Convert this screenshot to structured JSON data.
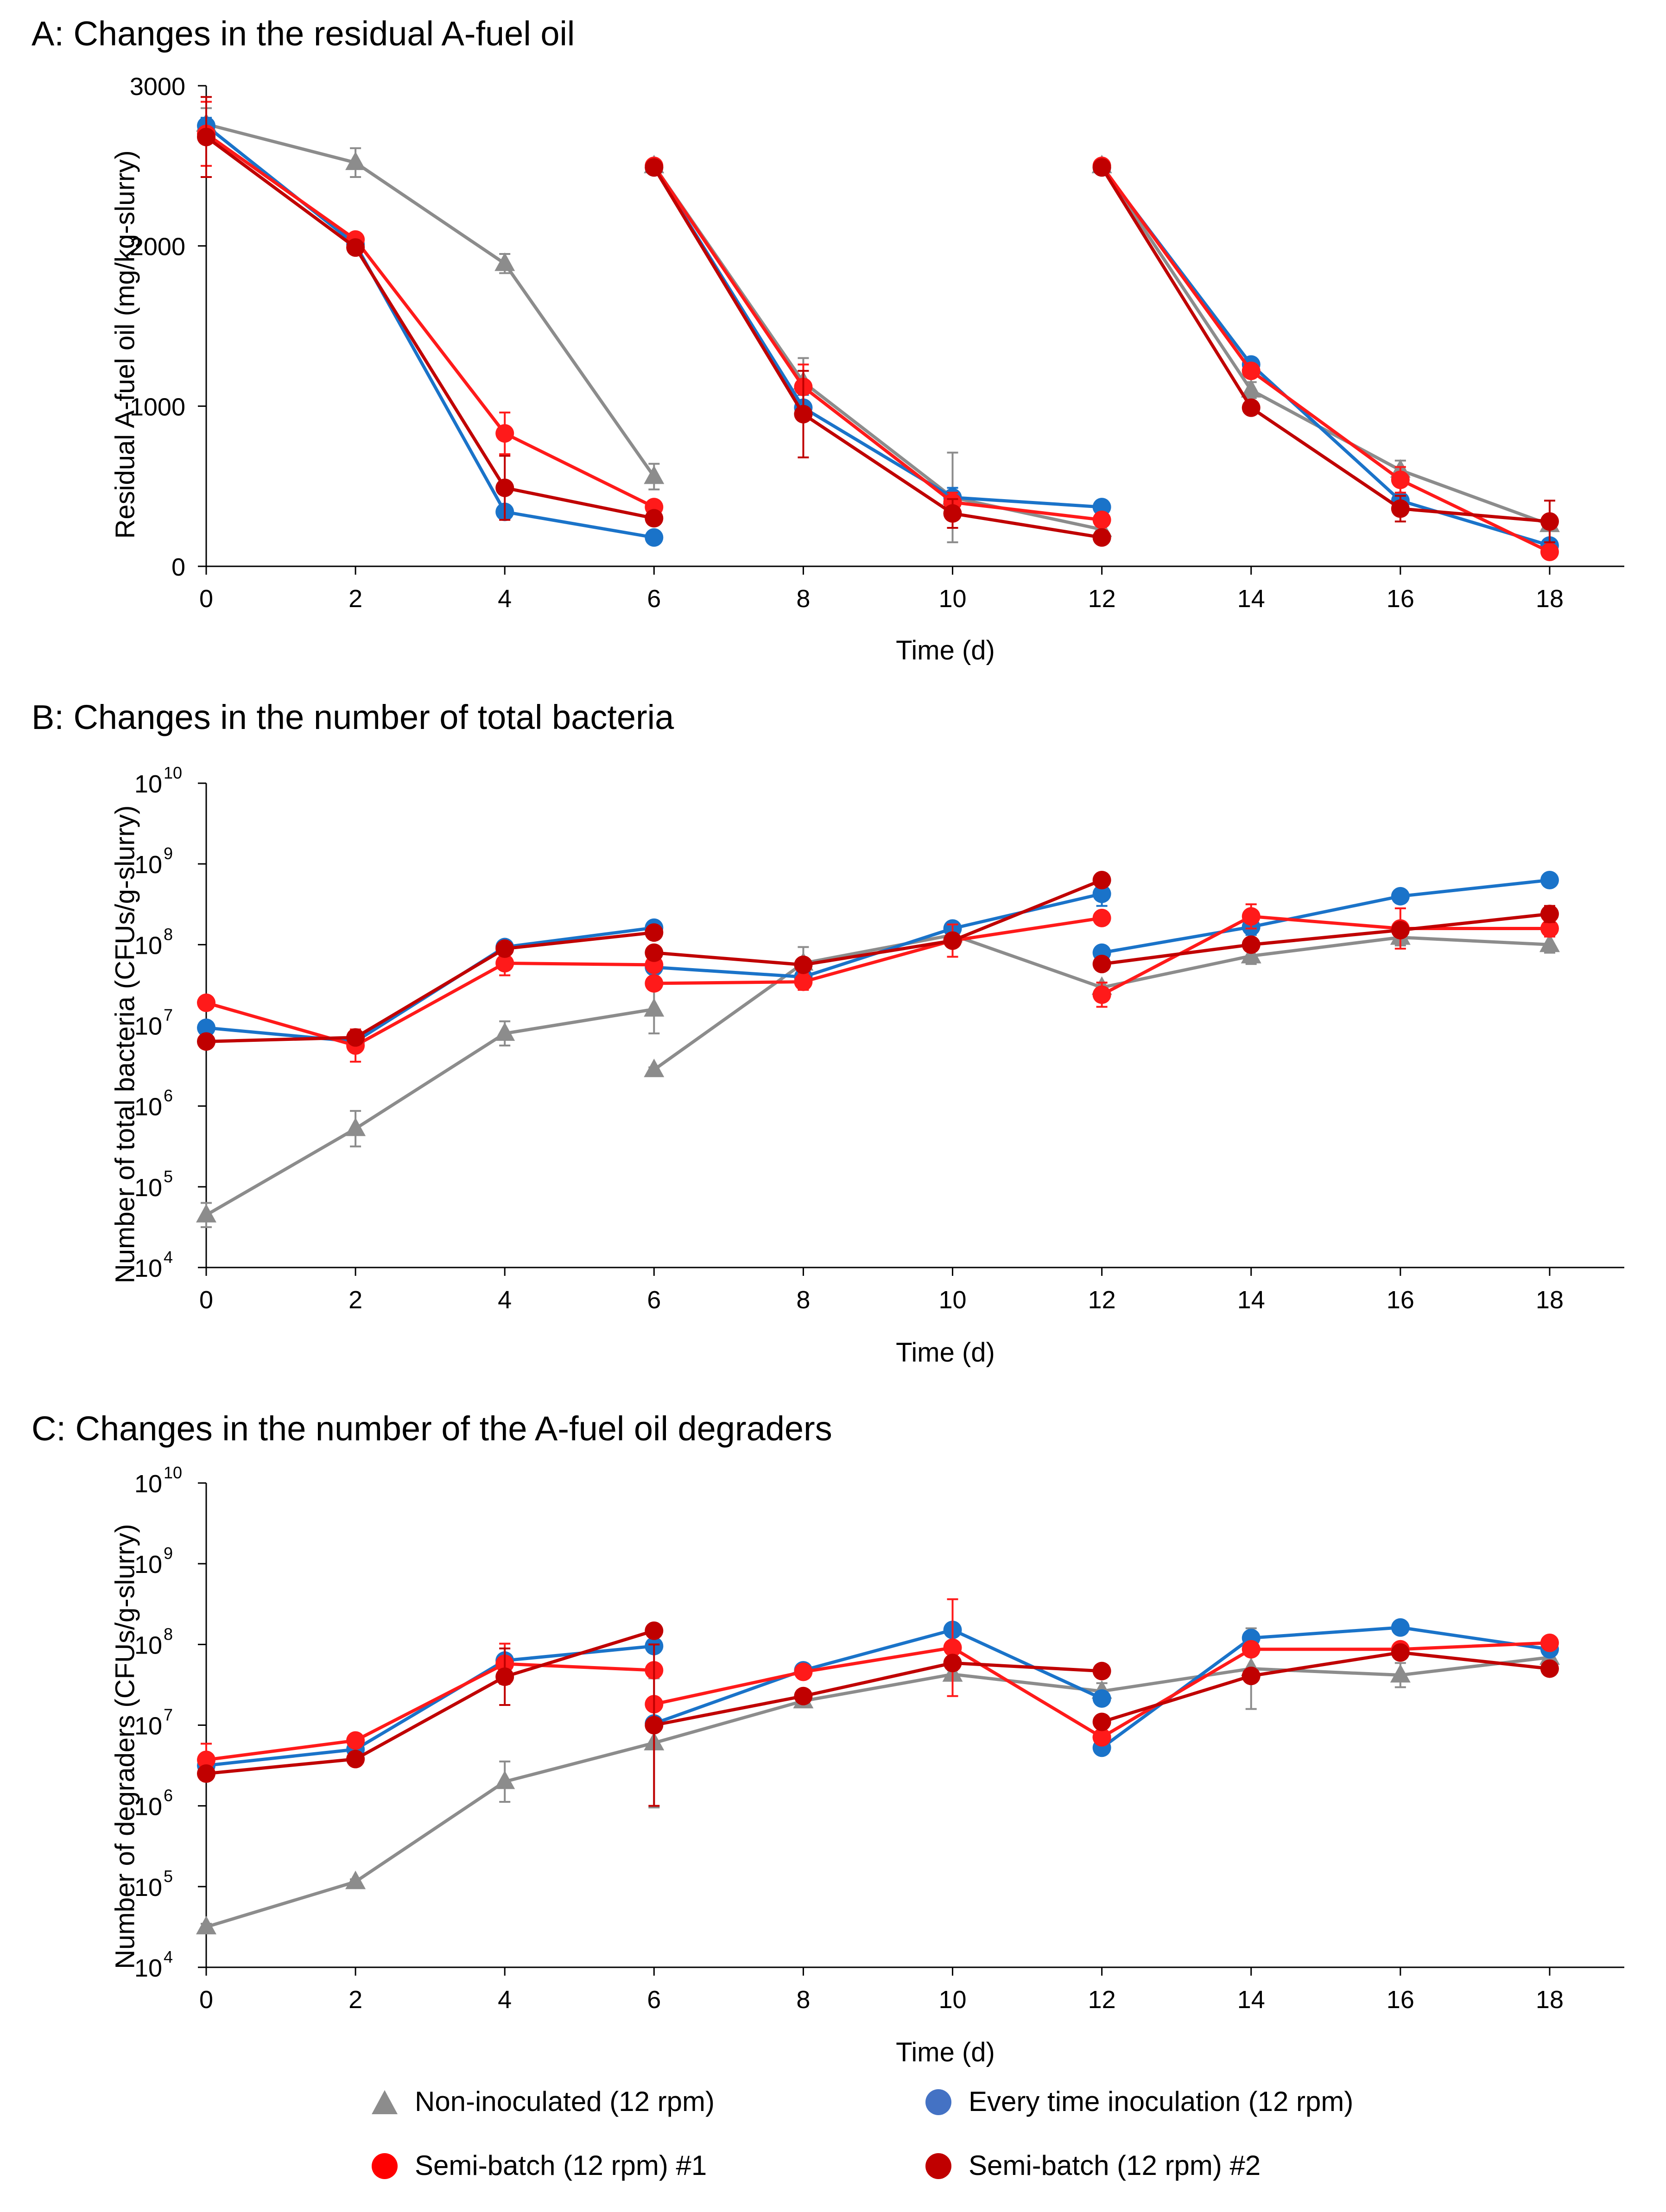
{
  "legend": [
    {
      "name": "Non-inoculated (12 rpm)",
      "color": "#808080",
      "marker": "triangle"
    },
    {
      "name": "Every time inoculation (12 rpm)",
      "color": "#4472C4",
      "marker": "circle"
    },
    {
      "name": "Semi-batch (12 rpm) #1",
      "color": "#FF0000",
      "marker": "circle"
    },
    {
      "name": "Semi-batch (12 rpm) #2",
      "color": "#C00000",
      "marker": "circle"
    }
  ],
  "chart_data": [
    {
      "type": "line",
      "title": "A: Changes in the residual A-fuel oil",
      "xlabel": "Time (d)",
      "ylabel": "Residual A-fuel oil (mg/kg-slurry)",
      "xlim": [
        0,
        19
      ],
      "ylim": [
        0,
        3000
      ],
      "yscale": "linear",
      "xticks": [
        0,
        2,
        4,
        6,
        8,
        10,
        12,
        14,
        16,
        18
      ],
      "yticks": [
        0,
        1000,
        2000,
        3000
      ],
      "ytick_labels": [
        "0",
        "1000",
        "2000",
        "3000"
      ],
      "series": [
        {
          "name": "Non-inoculated (12 rpm)",
          "color": "#8C8C8C",
          "marker": "triangle",
          "segments": [
            [
              [
                0,
                2760,
                100
              ],
              [
                2,
                2520,
                90
              ],
              [
                4,
                1890,
                60
              ],
              [
                6,
                560,
                80
              ]
            ],
            [
              [
                6,
                2500,
                40
              ],
              [
                8,
                1150,
                150
              ],
              [
                10,
                430,
                280
              ],
              [
                12,
                230,
                60
              ]
            ],
            [
              [
                12,
                2500,
                30
              ],
              [
                14,
                1100,
                50
              ],
              [
                16,
                600,
                60
              ],
              [
                18,
                260,
                40
              ]
            ]
          ]
        },
        {
          "name": "Every time inoculation (12 rpm)",
          "color": "#1A73C9",
          "marker": "circle",
          "segments": [
            [
              [
                0,
                2750,
                50
              ],
              [
                2,
                2010,
                30
              ],
              [
                4,
                340,
                40
              ],
              [
                6,
                180,
                20
              ]
            ],
            [
              [
                6,
                2490,
                30
              ],
              [
                8,
                990,
                80
              ],
              [
                10,
                430,
                60
              ],
              [
                12,
                370,
                20
              ]
            ],
            [
              [
                12,
                2490,
                30
              ],
              [
                14,
                1260,
                30
              ],
              [
                16,
                410,
                40
              ],
              [
                18,
                130,
                30
              ]
            ]
          ]
        },
        {
          "name": "Semi-batch (12 rpm) #1",
          "color": "#FF1A1A",
          "marker": "circle",
          "segments": [
            [
              [
                0,
                2700,
                200
              ],
              [
                2,
                2040,
                30
              ],
              [
                4,
                830,
                130
              ],
              [
                6,
                370,
                30
              ]
            ],
            [
              [
                6,
                2500,
                20
              ],
              [
                8,
                1120,
                140
              ],
              [
                10,
                400,
                60
              ],
              [
                12,
                290,
                20
              ]
            ],
            [
              [
                12,
                2500,
                20
              ],
              [
                14,
                1220,
                40
              ],
              [
                16,
                540,
                80
              ],
              [
                18,
                90,
                20
              ]
            ]
          ]
        },
        {
          "name": "Semi-batch (12 rpm) #2",
          "color": "#C00000",
          "marker": "circle",
          "segments": [
            [
              [
                0,
                2680,
                250
              ],
              [
                2,
                1990,
                30
              ],
              [
                4,
                490,
                200
              ],
              [
                6,
                300,
                20
              ]
            ],
            [
              [
                6,
                2490,
                20
              ],
              [
                8,
                950,
                270
              ],
              [
                10,
                330,
                90
              ],
              [
                12,
                180,
                20
              ]
            ],
            [
              [
                12,
                2490,
                20
              ],
              [
                14,
                990,
                30
              ],
              [
                16,
                360,
                80
              ],
              [
                18,
                280,
                130
              ]
            ]
          ]
        }
      ]
    },
    {
      "type": "line",
      "title": "B: Changes in the number of total bacteria",
      "xlabel": "Time (d)",
      "ylabel": "Number of total bacteria (CFUs/g-slurry)",
      "xlim": [
        0,
        19
      ],
      "ylim": [
        4,
        10
      ],
      "yscale": "log10",
      "xticks": [
        0,
        2,
        4,
        6,
        8,
        10,
        12,
        14,
        16,
        18
      ],
      "yticks": [
        4,
        5,
        6,
        7,
        8,
        9,
        10
      ],
      "ytick_labels": [
        "10",
        "10",
        "10",
        "10",
        "10",
        "10",
        "10"
      ],
      "ytick_exponents": [
        "4",
        "5",
        "6",
        "7",
        "8",
        "9",
        "10"
      ],
      "series": [
        {
          "name": "Non-inoculated (12 rpm)",
          "color": "#8C8C8C",
          "marker": "triangle",
          "segments": [
            [
              [
                0,
                4.65,
                0.15
              ],
              [
                2,
                5.72,
                0.22
              ],
              [
                4,
                6.9,
                0.15
              ],
              [
                6,
                7.2,
                0.3
              ]
            ],
            [
              [
                6,
                6.45,
                0.03
              ],
              [
                8,
                7.77,
                0.2
              ],
              [
                10,
                8.12,
                0.06
              ],
              [
                12,
                7.47,
                0.06
              ],
              [
                14,
                7.86,
                0.1
              ],
              [
                16,
                8.09,
                0.1
              ],
              [
                18,
                8.0,
                0.1
              ]
            ]
          ]
        },
        {
          "name": "Every time inoculation (12 rpm)",
          "color": "#1A73C9",
          "marker": "circle",
          "segments": [
            [
              [
                0,
                6.97,
                0.03
              ],
              [
                2,
                6.8,
                0.06
              ],
              [
                4,
                7.97,
                0.03
              ],
              [
                6,
                8.21,
                0.03
              ]
            ],
            [
              [
                6,
                7.72,
                0.06
              ],
              [
                8,
                7.6,
                0.1
              ],
              [
                10,
                8.2,
                0.06
              ],
              [
                12,
                8.63,
                0.15
              ]
            ],
            [
              [
                12,
                7.9,
                0.08
              ],
              [
                14,
                8.22,
                0.1
              ],
              [
                16,
                8.6,
                0.05
              ],
              [
                18,
                8.8,
                0.04
              ]
            ]
          ]
        },
        {
          "name": "Semi-batch (12 rpm) #1",
          "color": "#FF1A1A",
          "marker": "circle",
          "segments": [
            [
              [
                0,
                7.28,
                0.03
              ],
              [
                2,
                6.75,
                0.2
              ],
              [
                4,
                7.77,
                0.15
              ],
              [
                6,
                7.75,
                0.03
              ]
            ],
            [
              [
                6,
                7.52,
                0.03
              ],
              [
                8,
                7.54,
                0.1
              ],
              [
                10,
                8.05,
                0.2
              ],
              [
                12,
                8.33,
                0.03
              ]
            ],
            [
              [
                12,
                7.38,
                0.15
              ],
              [
                14,
                8.35,
                0.15
              ],
              [
                16,
                8.2,
                0.25
              ],
              [
                18,
                8.2,
                0.1
              ]
            ]
          ]
        },
        {
          "name": "Semi-batch (12 rpm) #2",
          "color": "#C00000",
          "marker": "circle",
          "segments": [
            [
              [
                0,
                6.8,
                0.03
              ],
              [
                2,
                6.85,
                0.06
              ],
              [
                4,
                7.95,
                0.03
              ],
              [
                6,
                8.15,
                0.03
              ]
            ],
            [
              [
                6,
                7.9,
                0.03
              ],
              [
                8,
                7.75,
                0.06
              ],
              [
                10,
                8.05,
                0.06
              ],
              [
                12,
                8.8,
                0.04
              ]
            ],
            [
              [
                12,
                7.76,
                0.06
              ],
              [
                14,
                8.0,
                0.06
              ],
              [
                16,
                8.18,
                0.08
              ],
              [
                18,
                8.38,
                0.1
              ]
            ]
          ]
        }
      ]
    },
    {
      "type": "line",
      "title": "C: Changes in the number of the A-fuel oil degraders",
      "xlabel": "Time (d)",
      "ylabel": "Number of degraders (CFUs/g-slurry)",
      "xlim": [
        0,
        19
      ],
      "ylim": [
        4,
        10
      ],
      "yscale": "log10",
      "xticks": [
        0,
        2,
        4,
        6,
        8,
        10,
        12,
        14,
        16,
        18
      ],
      "yticks": [
        4,
        5,
        6,
        7,
        8,
        9,
        10
      ],
      "ytick_labels": [
        "10",
        "10",
        "10",
        "10",
        "10",
        "10",
        "10"
      ],
      "ytick_exponents": [
        "4",
        "5",
        "6",
        "7",
        "8",
        "9",
        "10"
      ],
      "series": [
        {
          "name": "Non-inoculated (12 rpm)",
          "color": "#8C8C8C",
          "marker": "triangle",
          "segments": [
            [
              [
                0,
                4.5,
                0.04
              ],
              [
                2,
                5.06,
                0.03
              ],
              [
                4,
                6.3,
                0.25
              ],
              [
                6,
                6.78,
                0.8
              ],
              [
                8,
                7.3,
                0.05
              ],
              [
                10,
                7.63,
                0.05
              ],
              [
                12,
                7.42,
                0.1
              ],
              [
                14,
                7.7,
                0.5
              ],
              [
                16,
                7.62,
                0.15
              ],
              [
                18,
                7.84,
                0.06
              ]
            ]
          ]
        },
        {
          "name": "Every time inoculation (12 rpm)",
          "color": "#1A73C9",
          "marker": "circle",
          "segments": [
            [
              [
                0,
                6.5,
                0.04
              ],
              [
                2,
                6.7,
                0.06
              ],
              [
                4,
                7.8,
                0.04
              ],
              [
                6,
                7.98,
                0.03
              ]
            ],
            [
              [
                6,
                7.02,
                0.04
              ],
              [
                8,
                7.68,
                0.04
              ],
              [
                10,
                8.18,
                0.03
              ],
              [
                12,
                7.33,
                0.04
              ]
            ],
            [
              [
                12,
                6.72,
                0.04
              ],
              [
                14,
                8.08,
                0.04
              ],
              [
                16,
                8.21,
                0.03
              ],
              [
                18,
                7.94,
                0.04
              ]
            ]
          ]
        },
        {
          "name": "Semi-batch (12 rpm) #1",
          "color": "#FF1A1A",
          "marker": "circle",
          "segments": [
            [
              [
                0,
                6.57,
                0.2
              ],
              [
                2,
                6.81,
                0.06
              ],
              [
                4,
                7.76,
                0.25
              ],
              [
                6,
                7.68,
                0.03
              ]
            ],
            [
              [
                6,
                7.26,
                0.03
              ],
              [
                8,
                7.66,
                0.04
              ],
              [
                10,
                7.96,
                0.6
              ],
              [
                12,
                6.85,
                0.06
              ]
            ],
            [
              [
                12,
                6.85,
                0.04
              ],
              [
                14,
                7.94,
                0.06
              ],
              [
                16,
                7.94,
                0.06
              ],
              [
                18,
                8.02,
                0.06
              ]
            ]
          ]
        },
        {
          "name": "Semi-batch (12 rpm) #2",
          "color": "#C00000",
          "marker": "circle",
          "segments": [
            [
              [
                0,
                6.4,
                0.06
              ],
              [
                2,
                6.58,
                0.06
              ],
              [
                4,
                7.6,
                0.35
              ],
              [
                6,
                8.17,
                0.03
              ]
            ],
            [
              [
                6,
                7.0,
                1.0
              ],
              [
                8,
                7.36,
                0.06
              ],
              [
                10,
                7.77,
                0.06
              ],
              [
                12,
                7.67,
                0.06
              ]
            ],
            [
              [
                12,
                7.04,
                0.06
              ],
              [
                14,
                7.61,
                0.06
              ],
              [
                16,
                7.9,
                0.06
              ],
              [
                18,
                7.7,
                0.06
              ]
            ]
          ]
        }
      ]
    }
  ]
}
